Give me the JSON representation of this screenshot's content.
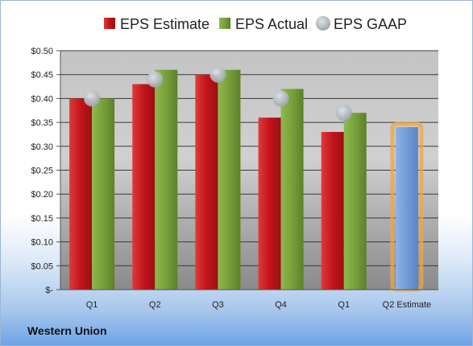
{
  "company_label": "Western Union",
  "chart_data": {
    "type": "bar",
    "categories": [
      "Q1",
      "Q2",
      "Q3",
      "Q4",
      "Q1",
      "Q2 Estimate"
    ],
    "y_tick_labels": [
      "$-",
      "$0.05",
      "$0.10",
      "$0.15",
      "$0.20",
      "$0.25",
      "$0.30",
      "$0.35",
      "$0.40",
      "$0.45",
      "$0.50"
    ],
    "ylim": [
      0,
      0.5
    ],
    "legend_position": "top",
    "grid": true,
    "series": [
      {
        "name": "EPS Estimate",
        "type": "bar",
        "color": "#c0141a",
        "values": [
          0.4,
          0.43,
          0.45,
          0.36,
          0.33,
          0.34
        ]
      },
      {
        "name": "EPS Actual",
        "type": "bar",
        "color": "#77a03a",
        "values": [
          0.4,
          0.46,
          0.46,
          0.42,
          0.37,
          null
        ]
      },
      {
        "name": "EPS GAAP",
        "type": "scatter",
        "color": "#b8bfc8",
        "values": [
          0.4,
          0.44,
          0.45,
          0.4,
          0.37,
          null
        ]
      }
    ]
  }
}
